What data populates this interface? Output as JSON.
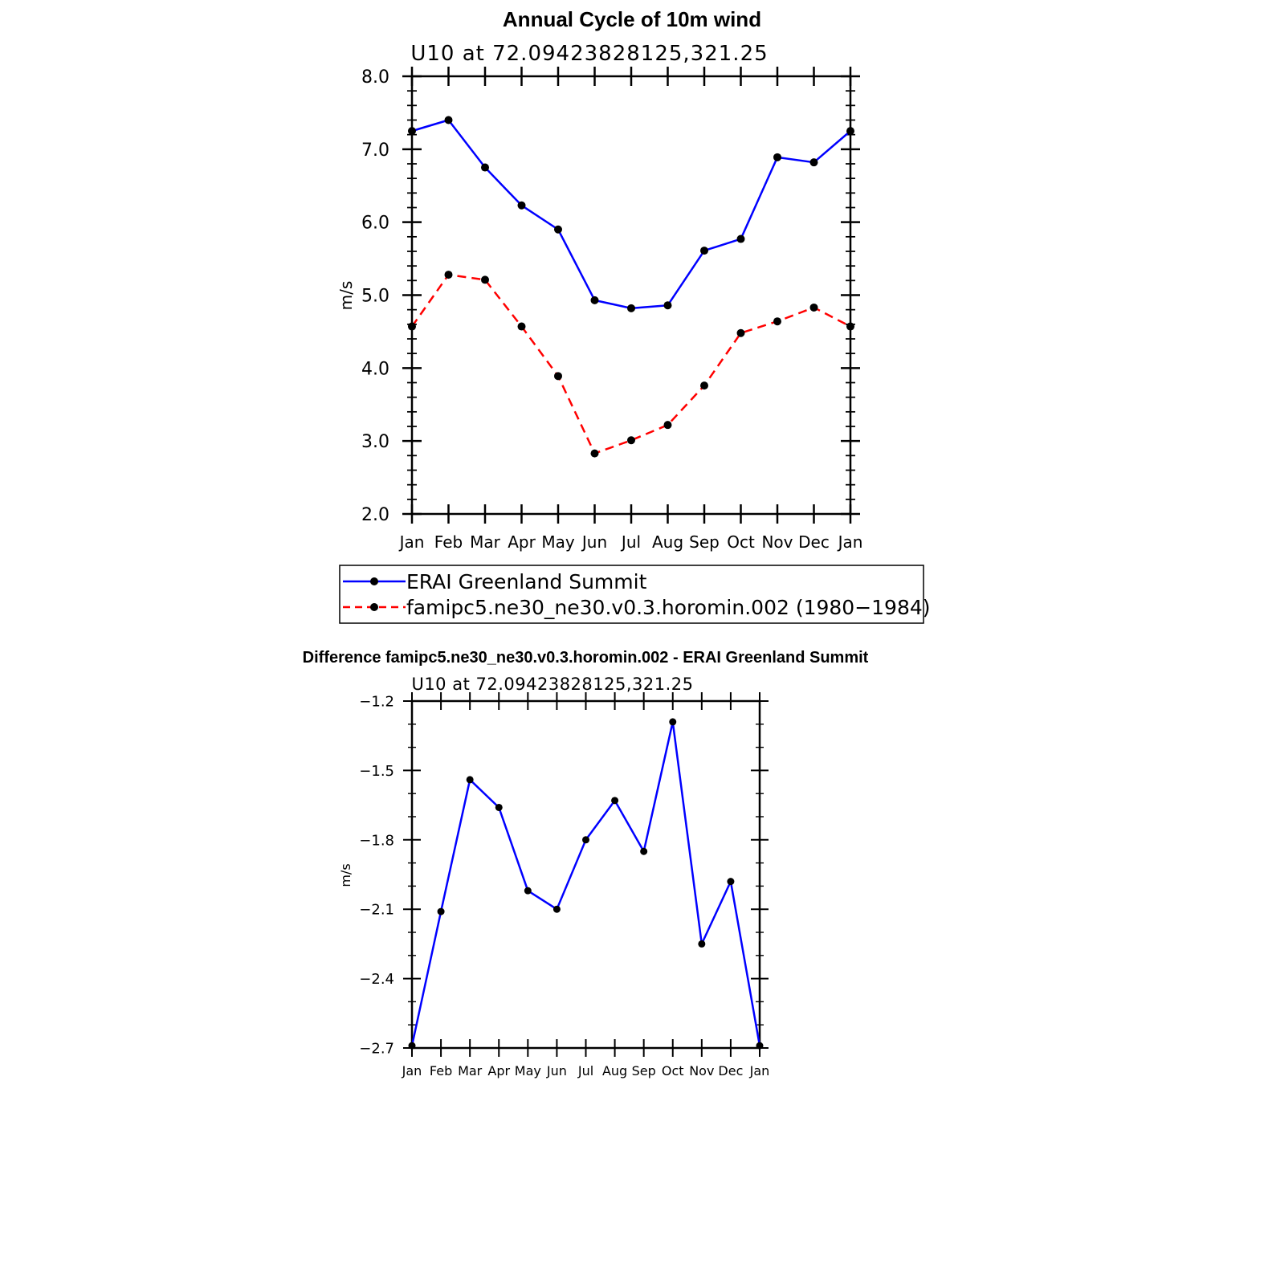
{
  "chart_data": [
    {
      "type": "line",
      "title": "Annual Cycle of 10m wind",
      "subtitle": "U10 at 72.09423828125,321.25",
      "ylabel": "m/s",
      "xlabel": "",
      "ylim": [
        2.0,
        8.0
      ],
      "yticks": [
        "2.0",
        "3.0",
        "4.0",
        "5.0",
        "6.0",
        "7.0",
        "8.0"
      ],
      "categories": [
        "Jan",
        "Feb",
        "Mar",
        "Apr",
        "May",
        "Jun",
        "Jul",
        "Aug",
        "Sep",
        "Oct",
        "Nov",
        "Dec",
        "Jan"
      ],
      "series": [
        {
          "name": "ERAI Greenland Summit",
          "color": "#0000ff",
          "style": "solid",
          "values": [
            7.25,
            7.4,
            6.75,
            6.23,
            5.9,
            4.93,
            4.82,
            4.86,
            5.61,
            5.77,
            6.89,
            6.82,
            7.25
          ]
        },
        {
          "name": "famipc5.ne30_ne30.v0.3.horomin.002 (1980−1984)",
          "color": "#ff0000",
          "style": "dashed",
          "values": [
            4.57,
            5.28,
            5.21,
            4.57,
            3.89,
            2.83,
            3.01,
            3.22,
            3.76,
            4.48,
            4.64,
            4.83,
            4.57
          ]
        }
      ]
    },
    {
      "type": "line",
      "title": "Difference famipc5.ne30_ne30.v0.3.horomin.002 - ERAI Greenland Summit",
      "subtitle": "U10 at 72.09423828125,321.25",
      "ylabel": "m/s",
      "xlabel": "",
      "ylim": [
        -2.7,
        -1.2
      ],
      "yticks": [
        "−2.7",
        "−2.4",
        "−2.1",
        "−1.8",
        "−1.5",
        "−1.2"
      ],
      "categories": [
        "Jan",
        "Feb",
        "Mar",
        "Apr",
        "May",
        "Jun",
        "Jul",
        "Aug",
        "Sep",
        "Oct",
        "Nov",
        "Dec",
        "Jan"
      ],
      "series": [
        {
          "name": "Difference",
          "color": "#0000ff",
          "style": "solid",
          "values": [
            -2.69,
            -2.11,
            -1.54,
            -1.66,
            -2.02,
            -2.1,
            -1.8,
            -1.63,
            -1.85,
            -1.29,
            -2.25,
            -1.98,
            -2.69
          ]
        }
      ]
    }
  ]
}
